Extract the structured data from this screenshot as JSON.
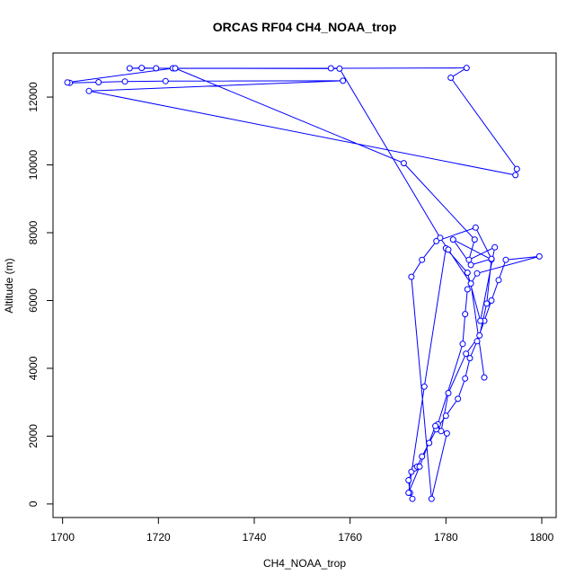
{
  "chart_data": {
    "type": "line",
    "title": "ORCAS RF04 CH4_NOAA_trop",
    "xlabel": "CH4_NOAA_trop",
    "ylabel": "Altitude (m)",
    "xlim": [
      1698,
      1803
    ],
    "ylim": [
      -400,
      13300
    ],
    "xticks": [
      1700,
      1720,
      1740,
      1760,
      1780,
      1800
    ],
    "yticks": [
      0,
      2000,
      4000,
      6000,
      8000,
      10000,
      12000
    ],
    "grid": false,
    "line_color": "#0000ff",
    "marker": "open-circle",
    "series": [
      {
        "x": [
          1773,
          1772.5,
          1772.2,
          1772.8,
          1773.5,
          1774,
          1775,
          1776.5,
          1778,
          1780,
          1782.5,
          1784,
          1785,
          1786.5,
          1788,
          1789.5,
          1791,
          1792.5,
          1799.5,
          1786.5,
          1784.5,
          1784,
          1783.5,
          1778.3,
          1779,
          1780.5,
          1784.2,
          1787,
          1788.5,
          1789.5,
          1781.5,
          1785.2,
          1789.5,
          1786.2,
          1778,
          1775,
          1772.8,
          1777,
          1780.2,
          1777.8,
          1774.5,
          1772.2,
          1775.5,
          1780,
          1784.5,
          1787.2,
          1790.2,
          1784.8,
          1786,
          1771.2,
          1723.5,
          1756,
          1784.3,
          1781,
          1794.8,
          1794.5,
          1705.5,
          1758.5,
          1721.5,
          1713,
          1707.5,
          1701.5,
          1701,
          1723,
          1719.5,
          1716.5,
          1714,
          1723.5,
          1757.8,
          1778.8,
          1780.5,
          1785.2,
          1788
        ],
        "y": [
          150,
          330,
          700,
          950,
          1050,
          1100,
          1400,
          1800,
          2200,
          2600,
          3100,
          3700,
          4300,
          4800,
          5400,
          6000,
          6600,
          7200,
          7300,
          6800,
          6330,
          5600,
          4720,
          2350,
          2150,
          3270,
          4430,
          4970,
          5910,
          7210,
          7800,
          7050,
          7230,
          8150,
          7750,
          7200,
          6700,
          150,
          2080,
          2300,
          1100,
          330,
          3460,
          7540,
          6820,
          5400,
          7570,
          7200,
          7800,
          10050,
          12850,
          12850,
          12860,
          12570,
          9880,
          9700,
          12180,
          12480,
          12470,
          12460,
          12440,
          12420,
          12430,
          12850,
          12850,
          12860,
          12850,
          12850,
          12840,
          7850,
          7500,
          6500,
          3730
        ]
      }
    ]
  }
}
